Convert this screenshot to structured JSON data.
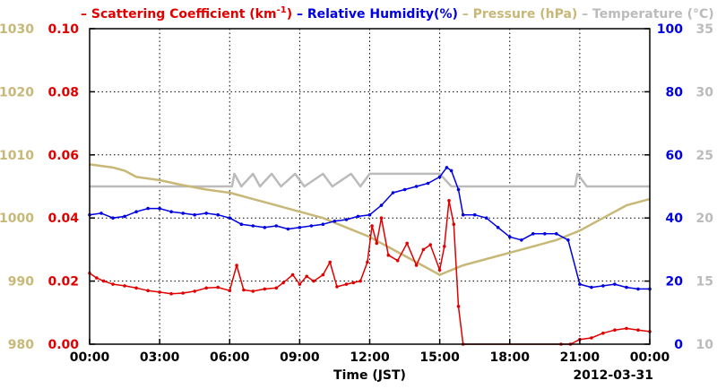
{
  "chart_data": {
    "type": "line",
    "date_label": "2012-03-31",
    "xlabel": "Time (JST)",
    "x_ticks": [
      "00:00",
      "03:00",
      "06:00",
      "09:00",
      "12:00",
      "15:00",
      "18:00",
      "21:00",
      "00:00"
    ],
    "x_range_hours": [
      0,
      24
    ],
    "legend": [
      {
        "prefix": "– ",
        "name": "Scattering Coefficient (km",
        "sup": "-1",
        "suffix": ")",
        "color": "#e00000"
      },
      {
        "prefix": " – ",
        "name": "Relative Humidity(%)",
        "color": "#0000e0"
      },
      {
        "prefix": " – ",
        "name": "Pressure (hPa)",
        "color": "#c8b878"
      },
      {
        "prefix": " – ",
        "name": "Temperature (°C)",
        "color": "#bbbbbb"
      }
    ],
    "axes": {
      "pressure": {
        "min": 980,
        "max": 1030,
        "ticks": [
          "980",
          "990",
          "1000",
          "1010",
          "1020",
          "1030"
        ],
        "color": "#c8b878"
      },
      "scattering": {
        "min": 0,
        "max": 0.1,
        "ticks": [
          "0.00",
          "0.02",
          "0.04",
          "0.06",
          "0.08",
          "0.10"
        ],
        "color": "#e00000"
      },
      "humidity": {
        "min": 0,
        "max": 100,
        "ticks": [
          "0",
          "20",
          "40",
          "60",
          "80",
          "100"
        ],
        "color": "#0000e0"
      },
      "temperature": {
        "min": 10,
        "max": 35,
        "ticks": [
          "10",
          "15",
          "20",
          "25",
          "30",
          "35"
        ],
        "color": "#bbbbbb"
      }
    },
    "grid": true,
    "series": [
      {
        "name": "Scattering Coefficient",
        "axis": "scattering",
        "color": "#e00000",
        "markers": true,
        "points": [
          [
            0,
            0.0225
          ],
          [
            0.3,
            0.021
          ],
          [
            0.6,
            0.02
          ],
          [
            1,
            0.019
          ],
          [
            1.5,
            0.0185
          ],
          [
            2,
            0.0178
          ],
          [
            2.5,
            0.017
          ],
          [
            3,
            0.0165
          ],
          [
            3.5,
            0.016
          ],
          [
            4,
            0.0162
          ],
          [
            4.5,
            0.0168
          ],
          [
            5,
            0.0178
          ],
          [
            5.5,
            0.018
          ],
          [
            6,
            0.017
          ],
          [
            6.3,
            0.025
          ],
          [
            6.6,
            0.0172
          ],
          [
            7,
            0.0168
          ],
          [
            7.5,
            0.0175
          ],
          [
            8,
            0.0178
          ],
          [
            8.3,
            0.0195
          ],
          [
            8.7,
            0.022
          ],
          [
            9,
            0.019
          ],
          [
            9.3,
            0.0215
          ],
          [
            9.6,
            0.02
          ],
          [
            10,
            0.022
          ],
          [
            10.3,
            0.026
          ],
          [
            10.6,
            0.0182
          ],
          [
            11,
            0.019
          ],
          [
            11.3,
            0.0195
          ],
          [
            11.6,
            0.02
          ],
          [
            11.9,
            0.026
          ],
          [
            12.1,
            0.0375
          ],
          [
            12.3,
            0.032
          ],
          [
            12.5,
            0.04
          ],
          [
            12.8,
            0.0282
          ],
          [
            13.2,
            0.0265
          ],
          [
            13.6,
            0.032
          ],
          [
            14,
            0.025
          ],
          [
            14.3,
            0.03
          ],
          [
            14.6,
            0.0315
          ],
          [
            15,
            0.0235
          ],
          [
            15.2,
            0.031
          ],
          [
            15.4,
            0.0455
          ],
          [
            15.6,
            0.038
          ],
          [
            15.8,
            0.012
          ],
          [
            16,
            0.0
          ],
          [
            20.2,
            0.0
          ],
          [
            20.6,
            0.0
          ],
          [
            21,
            0.0015
          ],
          [
            21.5,
            0.002
          ],
          [
            22,
            0.0035
          ],
          [
            22.5,
            0.0045
          ],
          [
            23,
            0.005
          ],
          [
            23.5,
            0.0045
          ],
          [
            24,
            0.004
          ]
        ]
      },
      {
        "name": "Relative Humidity",
        "axis": "humidity",
        "color": "#0000e0",
        "markers": true,
        "points": [
          [
            0,
            41
          ],
          [
            0.5,
            41.5
          ],
          [
            1,
            40
          ],
          [
            1.5,
            40.5
          ],
          [
            2,
            42
          ],
          [
            2.5,
            43
          ],
          [
            3,
            43
          ],
          [
            3.5,
            42
          ],
          [
            4,
            41.5
          ],
          [
            4.5,
            41
          ],
          [
            5,
            41.5
          ],
          [
            5.5,
            41
          ],
          [
            6,
            40
          ],
          [
            6.5,
            38
          ],
          [
            7,
            37.5
          ],
          [
            7.5,
            37
          ],
          [
            8,
            37.5
          ],
          [
            8.5,
            36.5
          ],
          [
            9,
            37
          ],
          [
            9.5,
            37.5
          ],
          [
            10,
            38
          ],
          [
            10.5,
            39
          ],
          [
            11,
            39.5
          ],
          [
            11.5,
            40.5
          ],
          [
            12,
            41
          ],
          [
            12.5,
            44
          ],
          [
            13,
            48
          ],
          [
            13.5,
            49
          ],
          [
            14,
            50
          ],
          [
            14.5,
            51
          ],
          [
            15,
            53
          ],
          [
            15.3,
            56
          ],
          [
            15.5,
            55
          ],
          [
            15.8,
            49
          ],
          [
            16,
            41
          ],
          [
            16.5,
            41
          ],
          [
            17,
            40
          ],
          [
            17.5,
            37
          ],
          [
            18,
            34
          ],
          [
            18.5,
            33
          ],
          [
            19,
            35
          ],
          [
            19.5,
            35
          ],
          [
            20,
            35
          ],
          [
            20.5,
            33
          ],
          [
            21,
            19
          ],
          [
            21.5,
            18
          ],
          [
            22,
            18.5
          ],
          [
            22.5,
            19
          ],
          [
            23,
            18
          ],
          [
            23.5,
            17.5
          ],
          [
            24,
            17.5
          ]
        ]
      },
      {
        "name": "Pressure",
        "axis": "pressure",
        "color": "#c8b878",
        "markers": false,
        "points": [
          [
            0,
            1008.5
          ],
          [
            1,
            1008
          ],
          [
            1.5,
            1007.5
          ],
          [
            2,
            1006.5
          ],
          [
            3,
            1006
          ],
          [
            4,
            1005.2
          ],
          [
            5,
            1004.5
          ],
          [
            6,
            1004
          ],
          [
            7,
            1003
          ],
          [
            8,
            1002
          ],
          [
            9,
            1001
          ],
          [
            10,
            1000
          ],
          [
            11,
            998.5
          ],
          [
            12,
            997
          ],
          [
            13,
            995
          ],
          [
            14,
            993
          ],
          [
            15,
            991
          ],
          [
            16,
            992.5
          ],
          [
            17,
            993.5
          ],
          [
            18,
            994.5
          ],
          [
            19,
            995.5
          ],
          [
            20,
            996.5
          ],
          [
            21,
            998
          ],
          [
            22,
            1000
          ],
          [
            23,
            1002
          ],
          [
            24,
            1003
          ]
        ]
      },
      {
        "name": "Temperature",
        "axis": "temperature",
        "color": "#bbbbbb",
        "markers": false,
        "points": [
          [
            0,
            22.5
          ],
          [
            6.1,
            22.5
          ],
          [
            6.2,
            23.5
          ],
          [
            6.5,
            22.5
          ],
          [
            7,
            23.5
          ],
          [
            7.3,
            22.5
          ],
          [
            7.8,
            23.5
          ],
          [
            8.2,
            22.5
          ],
          [
            8.8,
            23.5
          ],
          [
            9.2,
            22.5
          ],
          [
            10,
            23.5
          ],
          [
            10.4,
            22.5
          ],
          [
            11.2,
            23.5
          ],
          [
            11.6,
            22.5
          ],
          [
            12,
            23.5
          ],
          [
            15,
            23.5
          ],
          [
            15.5,
            22.5
          ],
          [
            20.8,
            22.5
          ],
          [
            20.9,
            23.5
          ],
          [
            21.3,
            22.5
          ],
          [
            24,
            22.5
          ]
        ]
      }
    ]
  }
}
